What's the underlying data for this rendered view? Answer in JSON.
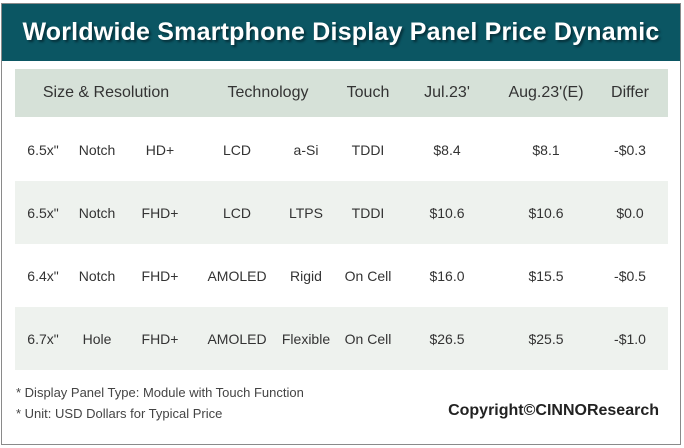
{
  "title": "Worldwide Smartphone Display Panel Price Dynamic",
  "headers": [
    "Size & Resolution",
    "Technology",
    "Touch",
    "Jul.23'",
    "Aug.23'(E)",
    "Differ"
  ],
  "rows": [
    {
      "size": "6.5x\"",
      "form": "Notch",
      "res": "HD+",
      "tech": "LCD",
      "sub": "a-Si",
      "touch": "TDDI",
      "jul": "$8.4",
      "aug": "$8.1",
      "diff": "-$0.3"
    },
    {
      "size": "6.5x\"",
      "form": "Notch",
      "res": "FHD+",
      "tech": "LCD",
      "sub": "LTPS",
      "touch": "TDDI",
      "jul": "$10.6",
      "aug": "$10.6",
      "diff": "$0.0"
    },
    {
      "size": "6.4x\"",
      "form": "Notch",
      "res": "FHD+",
      "tech": "AMOLED",
      "sub": "Rigid",
      "touch": "On Cell",
      "jul": "$16.0",
      "aug": "$15.5",
      "diff": "-$0.5"
    },
    {
      "size": "6.7x\"",
      "form": "Hole",
      "res": "FHD+",
      "tech": "AMOLED",
      "sub": "Flexible",
      "touch": "On Cell",
      "jul": "$26.5",
      "aug": "$25.5",
      "diff": "-$1.0"
    }
  ],
  "footnotes": [
    "* Display Panel Type:  Module with Touch Function",
    "* Unit:  USD Dollars for Typical Price"
  ],
  "copyright": "Copyright©CINNOResearch"
}
